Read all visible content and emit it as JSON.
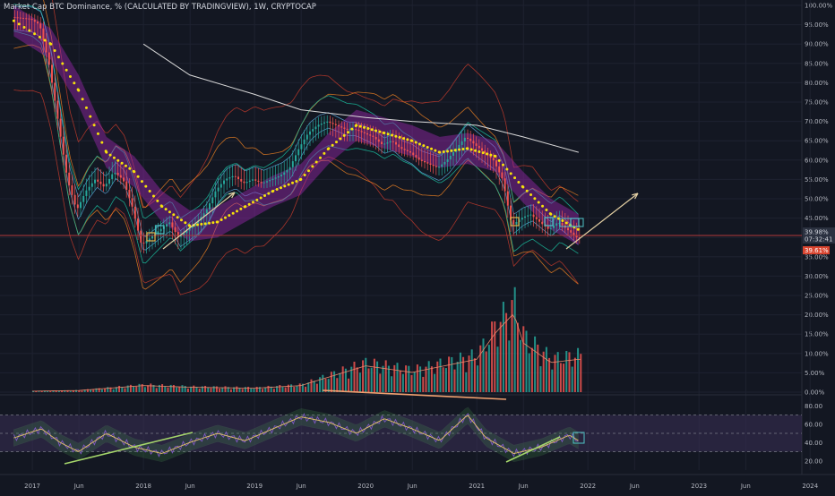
{
  "header": {
    "title": "Market Cap BTC Dominance, % (CALCULATED BY TRADINGVIEW), 1W, CRYPTOCAP"
  },
  "colors": {
    "background": "#131722",
    "grid": "#1e2230",
    "axis_text": "#b2b5be",
    "candle_up": "#26a69a",
    "candle_down": "#ef5350",
    "yellow_dots": "#f5e10c",
    "cloud": "#9c27b0",
    "horizontal_line": "#b33a3a",
    "rsi_band": "#3a2f55",
    "rsi_line": "#7e57c2",
    "rsi_ma": "#e8c46b",
    "arrow": "#e3cfa3",
    "price_tag": "#2b3140",
    "price_tag_red": "#d9442f"
  },
  "price_tags": {
    "current": "39.98%",
    "countdown": "07:32:41",
    "other": "39.61%"
  },
  "chart_data": [
    {
      "type": "line",
      "panel": "price",
      "title": "Market Cap BTC Dominance, % (CALCULATED BY TRADINGVIEW), 1W, CRYPTOCAP",
      "x_ticks": [
        "2017",
        "Jun",
        "2018",
        "Jun",
        "2019",
        "Jun",
        "2020",
        "Jun",
        "2021",
        "Jun",
        "2022",
        "Jun",
        "2023",
        "Jun",
        "2024"
      ],
      "y_ticks": [
        "100.00%",
        "95.00%",
        "90.00%",
        "85.00%",
        "80.00%",
        "75.00%",
        "70.00%",
        "65.00%",
        "60.00%",
        "55.00%",
        "50.00%",
        "45.00%",
        "40.00%",
        "35.00%",
        "30.00%",
        "25.00%",
        "20.00%",
        "15.00%",
        "10.00%",
        "5.00%",
        "0.00%"
      ],
      "ylim": [
        0,
        100
      ],
      "grid": true,
      "series": [
        {
          "role": "btc-dominance",
          "x": [
            "2016-11",
            "2017-01",
            "2017-02",
            "2017-03",
            "2017-04",
            "2017-05",
            "2017-06",
            "2017-07",
            "2017-08",
            "2017-09",
            "2017-10",
            "2017-11",
            "2017-12",
            "2018-01",
            "2018-02",
            "2018-03",
            "2018-04",
            "2018-05",
            "2018-06",
            "2018-07",
            "2018-08",
            "2018-09",
            "2018-10",
            "2018-11",
            "2018-12",
            "2019-01",
            "2019-02",
            "2019-03",
            "2019-04",
            "2019-05",
            "2019-06",
            "2019-07",
            "2019-08",
            "2019-09",
            "2019-10",
            "2019-11",
            "2019-12",
            "2020-01",
            "2020-02",
            "2020-03",
            "2020-04",
            "2020-05",
            "2020-06",
            "2020-07",
            "2020-08",
            "2020-09",
            "2020-10",
            "2020-11",
            "2020-12",
            "2021-01",
            "2021-02",
            "2021-03",
            "2021-04",
            "2021-05",
            "2021-06",
            "2021-07",
            "2021-08",
            "2021-09",
            "2021-10",
            "2021-11",
            "2021-12"
          ],
          "values": [
            97,
            96.5,
            95,
            85,
            70,
            55,
            47,
            52,
            55,
            53,
            57,
            55,
            48,
            38,
            40,
            42,
            44,
            40,
            42,
            44,
            47,
            52,
            55,
            56,
            54,
            55,
            54,
            55,
            56,
            58,
            63,
            67,
            69,
            70,
            69,
            68,
            68,
            67,
            66,
            64,
            65,
            63,
            62,
            60,
            59,
            58,
            60,
            63,
            66,
            64,
            62,
            60,
            55,
            43,
            45,
            46,
            44,
            42,
            44,
            42,
            40
          ]
        },
        {
          "role": "yellow-dotted-ma",
          "x": [
            "2016-11",
            "2017-03",
            "2017-06",
            "2017-09",
            "2017-12",
            "2018-03",
            "2018-06",
            "2018-09",
            "2018-12",
            "2019-03",
            "2019-06",
            "2019-09",
            "2019-12",
            "2020-03",
            "2020-06",
            "2020-09",
            "2020-12",
            "2021-03",
            "2021-06",
            "2021-09",
            "2021-12"
          ],
          "values": [
            96,
            90,
            78,
            62,
            57,
            48,
            43,
            44,
            48,
            52,
            55,
            63,
            69,
            67,
            65,
            62,
            63,
            61,
            53,
            46,
            42
          ]
        },
        {
          "role": "long-ma",
          "x": [
            "2018-01",
            "2018-06",
            "2019-01",
            "2019-06",
            "2020-01",
            "2020-06",
            "2021-01",
            "2021-06",
            "2021-12"
          ],
          "values": [
            90,
            82,
            77,
            73,
            71,
            70,
            69,
            66,
            62
          ]
        }
      ],
      "horizontal_line": 40.5
    },
    {
      "type": "bar",
      "panel": "volume",
      "note": "volume histogram in lower price panel",
      "x": [
        "2017",
        "2017-06",
        "2018",
        "2018-06",
        "2019",
        "2019-06",
        "2020",
        "2020-06",
        "2021",
        "2021-03",
        "2021-05",
        "2021-06",
        "2021-09",
        "2021-12"
      ],
      "values": [
        0.3,
        0.5,
        2,
        1.5,
        1.2,
        2,
        8,
        6,
        10,
        18,
        24,
        15,
        9,
        10
      ]
    },
    {
      "type": "line",
      "panel": "rsi",
      "y_ticks": [
        "80.00",
        "60.00",
        "40.00",
        "20.00"
      ],
      "ylim": [
        10,
        90
      ],
      "bands": [
        70,
        50,
        30
      ],
      "x": [
        "2016-11",
        "2017-02",
        "2017-04",
        "2017-06",
        "2017-09",
        "2017-12",
        "2018-03",
        "2018-06",
        "2018-09",
        "2018-12",
        "2019-03",
        "2019-06",
        "2019-09",
        "2019-12",
        "2020-03",
        "2020-06",
        "2020-09",
        "2020-12",
        "2021-02",
        "2021-05",
        "2021-08",
        "2021-11",
        "2021-12"
      ],
      "values": [
        45,
        55,
        40,
        30,
        50,
        35,
        28,
        40,
        50,
        42,
        55,
        68,
        62,
        50,
        66,
        55,
        42,
        70,
        45,
        28,
        35,
        48,
        42
      ]
    }
  ]
}
